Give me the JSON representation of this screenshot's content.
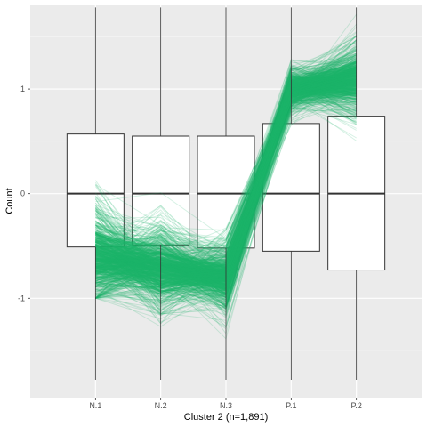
{
  "colors": {
    "panel": "#ebebeb",
    "grid_major": "#ffffff",
    "grid_minor": "#f5f5f5",
    "line": "#1db46a",
    "box_fill": "#ffffff",
    "box_stroke": "#333333"
  },
  "chart_data": {
    "type": "box",
    "title": "",
    "xlabel": "Cluster 2 (n=1,891)",
    "ylabel": "Count",
    "categories": [
      "N.1",
      "N.2",
      "N.3",
      "P.1",
      "P.2"
    ],
    "ylim": [
      -1.95,
      1.8
    ],
    "yticks": [
      -1,
      0,
      1
    ],
    "ytick_labels": [
      "-1",
      "0",
      "1"
    ],
    "grid": true,
    "boxes": [
      {
        "category": "N.1",
        "min": -1.78,
        "q1": -0.51,
        "median": 0.0,
        "q3": 0.57,
        "max": 1.78
      },
      {
        "category": "N.2",
        "min": -1.78,
        "q1": -0.49,
        "median": 0.0,
        "q3": 0.55,
        "max": 1.78
      },
      {
        "category": "N.3",
        "min": -1.78,
        "q1": -0.52,
        "median": 0.0,
        "q3": 0.55,
        "max": 1.78
      },
      {
        "category": "P.1",
        "min": -1.78,
        "q1": -0.55,
        "median": 0.0,
        "q3": 0.67,
        "max": 1.78
      },
      {
        "category": "P.2",
        "min": -1.78,
        "q1": -0.73,
        "median": 0.0,
        "q3": 0.74,
        "max": 1.78
      }
    ],
    "profile_lines": {
      "count": 1891,
      "mean": [
        -0.6,
        -0.7,
        -0.8,
        1.0,
        1.1
      ],
      "spread": [
        0.3,
        0.25,
        0.2,
        0.12,
        0.2
      ],
      "min": [
        -1.0,
        -1.5,
        -1.55,
        0.55,
        0.4
      ],
      "max": [
        0.8,
        0.8,
        0.1,
        1.5,
        1.75
      ]
    }
  }
}
